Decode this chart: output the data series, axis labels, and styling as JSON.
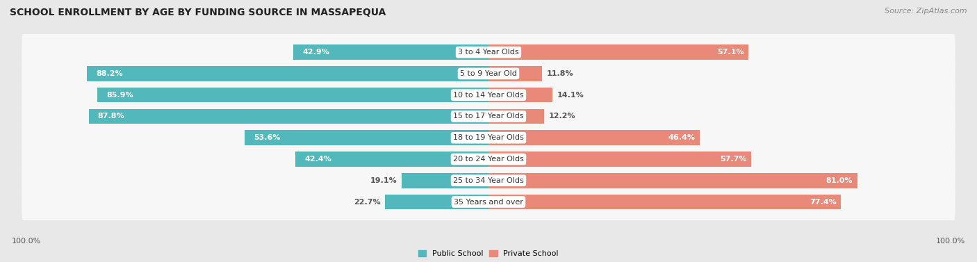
{
  "title": "SCHOOL ENROLLMENT BY AGE BY FUNDING SOURCE IN MASSAPEQUA",
  "source": "Source: ZipAtlas.com",
  "categories": [
    "3 to 4 Year Olds",
    "5 to 9 Year Old",
    "10 to 14 Year Olds",
    "15 to 17 Year Olds",
    "18 to 19 Year Olds",
    "20 to 24 Year Olds",
    "25 to 34 Year Olds",
    "35 Years and over"
  ],
  "public_values": [
    42.9,
    88.2,
    85.9,
    87.8,
    53.6,
    42.4,
    19.1,
    22.7
  ],
  "private_values": [
    57.1,
    11.8,
    14.1,
    12.2,
    46.4,
    57.7,
    81.0,
    77.4
  ],
  "public_color": "#52b8bb",
  "private_color": "#e8897a",
  "public_label": "Public School",
  "private_label": "Private School",
  "background_color": "#e8e8e8",
  "bar_background": "#f7f7f7",
  "title_fontsize": 10,
  "source_fontsize": 8,
  "cat_fontsize": 8,
  "val_fontsize": 8,
  "footer_label": "100.0%",
  "max_val": 100
}
